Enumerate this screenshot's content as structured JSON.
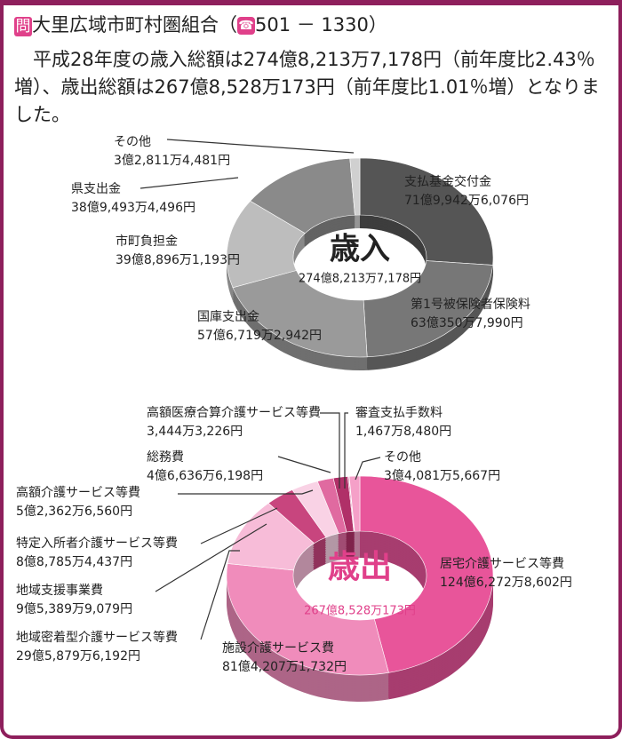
{
  "header": {
    "badge": "問",
    "org": "大里広域市町村圏組合（",
    "phone": "501 － 1330）",
    "paragraph": "平成28年度の歳入総額は274億8,213万7,178円（前年度比2.43％増）、歳出総額は267億8,528万173円（前年度比1.01％増）となりました。"
  },
  "chart_data": [
    {
      "type": "pie",
      "title": "歳入",
      "subtitle": "274億8,213万7,178円",
      "categories": [
        "支払基金交付金",
        "第1号被保険者保険料",
        "国庫支出金",
        "市町負担金",
        "県支出金",
        "その他"
      ],
      "values": [
        7199426076,
        6303507990,
        5767192942,
        3988961193,
        3894934496,
        328114481
      ],
      "value_labels": [
        "71億9,942万6,076円",
        "63億350万7,990円",
        "57億6,719万2,942円",
        "39億8,896万1,193円",
        "38億9,493万4,496円",
        "3億2,811万4,481円"
      ],
      "colors": [
        "#555555",
        "#777777",
        "#9a9a9a",
        "#bdbdbd",
        "#8a8a8a",
        "#d0d0d0"
      ]
    },
    {
      "type": "pie",
      "title": "歳出",
      "subtitle": "267億8,528万173円",
      "categories": [
        "居宅介護サービス等費",
        "施設介護サービス費",
        "地域密着型介護サービス等費",
        "地域支援事業費",
        "特定入所者介護サービス等費",
        "高額介護サービス等費",
        "総務費",
        "高額医療合算介護サービス等費",
        "審査支払手数料",
        "その他"
      ],
      "values": [
        12462728602,
        8142071732,
        2958796192,
        953899079,
        887854437,
        523626560,
        466366198,
        34443226,
        14678480,
        340815667
      ],
      "value_labels": [
        "124億6,272万8,602円",
        "81億4,207万1,732円",
        "29億5,879万6,192円",
        "9億5,389万9,079円",
        "8億8,785万4,437円",
        "5億2,362万6,560円",
        "4億6,636万6,198円",
        "3,444万3,226円",
        "1,467万8,480円",
        "3億4,081万5,667円"
      ],
      "colors": [
        "#e8559a",
        "#f08cbb",
        "#f7bcd8",
        "#c8457e",
        "#f9d2e5",
        "#e06aa0",
        "#b03068",
        "#d04a88",
        "#902050",
        "#f5a0c8"
      ]
    }
  ]
}
